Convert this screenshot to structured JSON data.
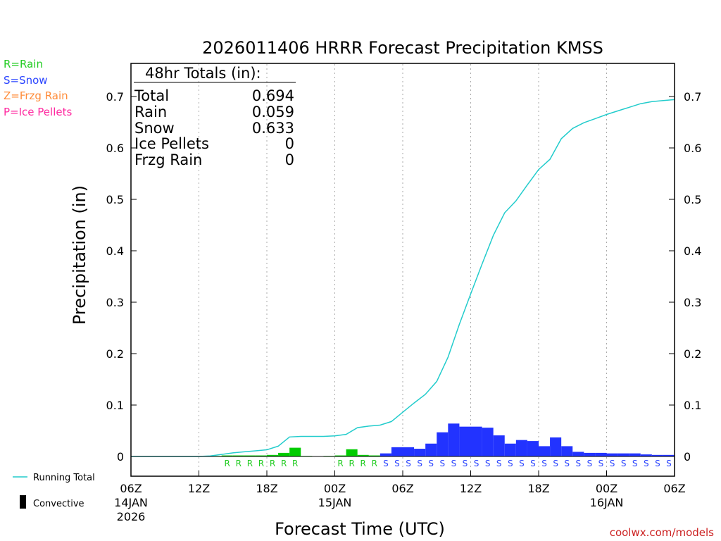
{
  "chart_data": {
    "type": "bar",
    "title": "2026011406 HRRR Forecast Precipitation KMSS",
    "xlabel": "Forecast Time (UTC)",
    "ylabel": "Precipitation (in)",
    "ylim": [
      0,
      0.75
    ],
    "y_ticks": [
      0,
      0.1,
      0.2,
      0.3,
      0.4,
      0.5,
      0.6,
      0.7
    ],
    "y_tick_labels": [
      "0",
      "0.1",
      "0.2",
      "0.3",
      "0.4",
      "0.5",
      "0.6",
      "0.7"
    ],
    "x_range_hours": [
      0,
      48
    ],
    "x_ticks": [
      {
        "hour": 0,
        "label": "06Z"
      },
      {
        "hour": 6,
        "label": "12Z"
      },
      {
        "hour": 12,
        "label": "18Z"
      },
      {
        "hour": 18,
        "label": "00Z"
      },
      {
        "hour": 24,
        "label": "06Z"
      },
      {
        "hour": 30,
        "label": "12Z"
      },
      {
        "hour": 36,
        "label": "18Z"
      },
      {
        "hour": 42,
        "label": "00Z"
      },
      {
        "hour": 48,
        "label": "06Z"
      }
    ],
    "date_labels": [
      {
        "hour": 0,
        "lines": [
          "14JAN",
          "2026"
        ]
      },
      {
        "hour": 18,
        "lines": [
          "15JAN"
        ]
      },
      {
        "hour": 42,
        "lines": [
          "16JAN"
        ]
      }
    ],
    "gridlines_at_hours": [
      6,
      12,
      18,
      24,
      30,
      36,
      42
    ],
    "grid": true,
    "legend_left": [
      {
        "label": "R=Rain",
        "color": "#22cc22"
      },
      {
        "label": "S=Snow",
        "color": "#2a44ff"
      },
      {
        "label": "Z=Frzg Rain",
        "color": "#ff8c3a"
      },
      {
        "label": "P=Ice Pellets",
        "color": "#ff2aa0"
      }
    ],
    "legend_bottom": [
      {
        "label": "Running Total",
        "kind": "line",
        "color": "#22cccc"
      },
      {
        "label": "Convective",
        "kind": "bar",
        "color": "#000000"
      }
    ],
    "totals_box": {
      "header": "48hr Totals (in):",
      "rows": [
        {
          "label": "Total",
          "value": "0.694"
        },
        {
          "label": "Rain",
          "value": "0.059"
        },
        {
          "label": "Snow",
          "value": "0.633"
        },
        {
          "label": "Ice Pellets",
          "value": "0"
        },
        {
          "label": "Frzg Rain",
          "value": "0"
        }
      ]
    },
    "colors": {
      "rain": "#00cc00",
      "snow": "#2233ff",
      "running_total": "#22cccc",
      "frame": "#000000",
      "grid": "#aaaaaa"
    },
    "hourly": [
      {
        "hour": 1,
        "value": 0.0,
        "ptype": ""
      },
      {
        "hour": 2,
        "value": 0.0,
        "ptype": ""
      },
      {
        "hour": 3,
        "value": 0.0,
        "ptype": ""
      },
      {
        "hour": 4,
        "value": 0.0,
        "ptype": ""
      },
      {
        "hour": 5,
        "value": 0.0,
        "ptype": ""
      },
      {
        "hour": 6,
        "value": 0.0,
        "ptype": ""
      },
      {
        "hour": 7,
        "value": 0.0,
        "ptype": ""
      },
      {
        "hour": 8,
        "value": 0.001,
        "ptype": ""
      },
      {
        "hour": 9,
        "value": 0.002,
        "ptype": "R"
      },
      {
        "hour": 10,
        "value": 0.002,
        "ptype": "R"
      },
      {
        "hour": 11,
        "value": 0.002,
        "ptype": "R"
      },
      {
        "hour": 12,
        "value": 0.002,
        "ptype": "R"
      },
      {
        "hour": 13,
        "value": 0.003,
        "ptype": "R"
      },
      {
        "hour": 14,
        "value": 0.007,
        "ptype": "R"
      },
      {
        "hour": 15,
        "value": 0.017,
        "ptype": "R"
      },
      {
        "hour": 16,
        "value": 0.001,
        "ptype": ""
      },
      {
        "hour": 17,
        "value": 0.0,
        "ptype": ""
      },
      {
        "hour": 18,
        "value": 0.001,
        "ptype": ""
      },
      {
        "hour": 19,
        "value": 0.002,
        "ptype": "R"
      },
      {
        "hour": 20,
        "value": 0.014,
        "ptype": "R"
      },
      {
        "hour": 21,
        "value": 0.003,
        "ptype": "R"
      },
      {
        "hour": 22,
        "value": 0.002,
        "ptype": "R"
      },
      {
        "hour": 23,
        "value": 0.006,
        "ptype": "S"
      },
      {
        "hour": 24,
        "value": 0.018,
        "ptype": "S"
      },
      {
        "hour": 25,
        "value": 0.018,
        "ptype": "S"
      },
      {
        "hour": 26,
        "value": 0.015,
        "ptype": "S"
      },
      {
        "hour": 27,
        "value": 0.025,
        "ptype": "S"
      },
      {
        "hour": 28,
        "value": 0.047,
        "ptype": "S"
      },
      {
        "hour": 29,
        "value": 0.064,
        "ptype": "S"
      },
      {
        "hour": 30,
        "value": 0.058,
        "ptype": "S"
      },
      {
        "hour": 31,
        "value": 0.058,
        "ptype": "S"
      },
      {
        "hour": 32,
        "value": 0.056,
        "ptype": "S"
      },
      {
        "hour": 33,
        "value": 0.041,
        "ptype": "S"
      },
      {
        "hour": 34,
        "value": 0.025,
        "ptype": "S"
      },
      {
        "hour": 35,
        "value": 0.032,
        "ptype": "S"
      },
      {
        "hour": 36,
        "value": 0.03,
        "ptype": "S"
      },
      {
        "hour": 37,
        "value": 0.02,
        "ptype": "S"
      },
      {
        "hour": 38,
        "value": 0.037,
        "ptype": "S"
      },
      {
        "hour": 39,
        "value": 0.02,
        "ptype": "S"
      },
      {
        "hour": 40,
        "value": 0.009,
        "ptype": "S"
      },
      {
        "hour": 41,
        "value": 0.007,
        "ptype": "S"
      },
      {
        "hour": 42,
        "value": 0.007,
        "ptype": "S"
      },
      {
        "hour": 43,
        "value": 0.006,
        "ptype": "S"
      },
      {
        "hour": 44,
        "value": 0.006,
        "ptype": "S"
      },
      {
        "hour": 45,
        "value": 0.006,
        "ptype": "S"
      },
      {
        "hour": 46,
        "value": 0.004,
        "ptype": "S"
      },
      {
        "hour": 47,
        "value": 0.003,
        "ptype": "S"
      },
      {
        "hour": 48,
        "value": 0.003,
        "ptype": "S"
      }
    ],
    "running_total": {
      "x": [
        0,
        2,
        4,
        6,
        7,
        8,
        9,
        10,
        11,
        12,
        13,
        14,
        15,
        16,
        17,
        18,
        19,
        20,
        21,
        22,
        23,
        24,
        25,
        26,
        27,
        28,
        29,
        30,
        31,
        32,
        33,
        34,
        35,
        36,
        37,
        38,
        39,
        40,
        41,
        42,
        43,
        44,
        45,
        46,
        47,
        48
      ],
      "y": [
        0,
        0,
        0,
        0,
        0.001,
        0.004,
        0.007,
        0.009,
        0.011,
        0.013,
        0.02,
        0.038,
        0.039,
        0.039,
        0.039,
        0.04,
        0.043,
        0.056,
        0.059,
        0.061,
        0.068,
        0.086,
        0.104,
        0.121,
        0.146,
        0.193,
        0.257,
        0.316,
        0.374,
        0.43,
        0.474,
        0.497,
        0.528,
        0.558,
        0.578,
        0.618,
        0.638,
        0.649,
        0.657,
        0.665,
        0.672,
        0.679,
        0.686,
        0.69,
        0.692,
        0.694
      ]
    },
    "watermark": "coolwx.com/models"
  }
}
